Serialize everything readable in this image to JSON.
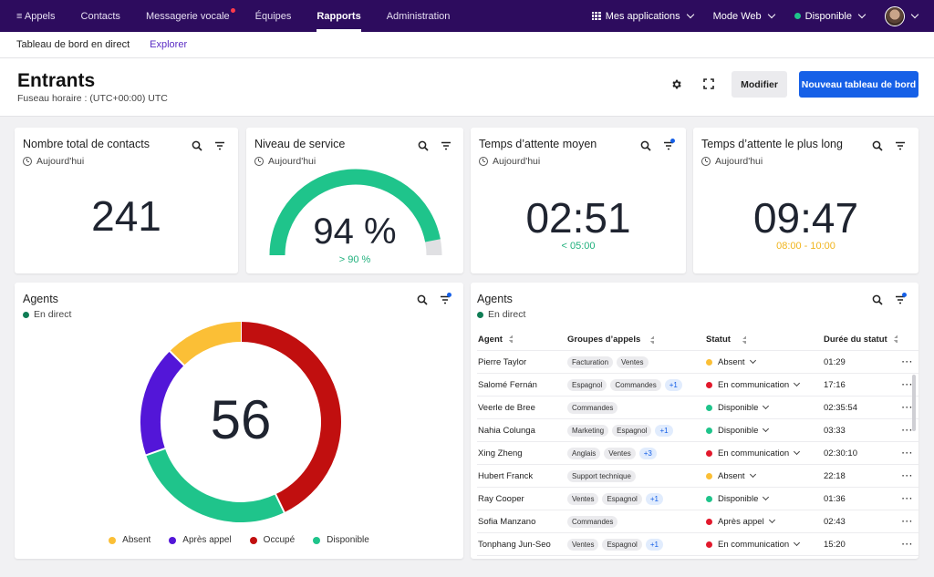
{
  "colors": {
    "nav_bg": "#2d0c5e",
    "accent_blue": "#1660e7",
    "green": "#1fc48b",
    "red": "#c10f0f",
    "yellow": "#fbbf36",
    "purple": "#5316d8"
  },
  "topnav": {
    "items": [
      {
        "label": "≡ Appels"
      },
      {
        "label": "Contacts"
      },
      {
        "label": "Messagerie vocale"
      },
      {
        "label": "Équipes"
      },
      {
        "label": "Rapports"
      },
      {
        "label": "Administration"
      }
    ],
    "active_index": 4,
    "apps_label": "Mes applications",
    "mode_label": "Mode Web",
    "status_label": "Disponible"
  },
  "subnav": {
    "dashboard_label": "Tableau de bord en direct",
    "explorer_label": "Explorer"
  },
  "header": {
    "title": "Entrants",
    "timezone": "Fuseau horaire : (UTC+00:00) UTC",
    "edit_label": "Modifier",
    "new_dashboard_label": "Nouveau tableau de bord"
  },
  "widgets": {
    "total_contacts": {
      "title": "Nombre total de contacts",
      "period": "Aujourd'hui",
      "value": "241"
    },
    "service_level": {
      "title": "Niveau de service",
      "period": "Aujourd'hui",
      "value": "94 %",
      "percent": 94,
      "target": "> 90 %"
    },
    "avg_wait": {
      "title": "Temps d’attente moyen",
      "period": "Aujourd'hui",
      "value": "02:51",
      "target": "< 05:00"
    },
    "longest_wait": {
      "title": "Temps d’attente le plus long",
      "period": "Aujourd'hui",
      "value": "09:47",
      "target": "08:00 - 10:00"
    }
  },
  "agents_donut": {
    "title": "Agents",
    "live_label": "En direct",
    "total": "56",
    "segments": [
      {
        "name": "Absent",
        "value": 7,
        "color": "#fbbf36"
      },
      {
        "name": "Après appel",
        "value": 10,
        "color": "#5316d8"
      },
      {
        "name": "Occupé",
        "value": 24,
        "color": "#c10f0f"
      },
      {
        "name": "Disponible",
        "value": 15,
        "color": "#1fc48b"
      }
    ]
  },
  "agents_table": {
    "title": "Agents",
    "live_label": "En direct",
    "columns": [
      "Agent",
      "Groupes d’appels",
      "Statut",
      "Durée du statut"
    ],
    "rows": [
      {
        "agent": "Pierre Taylor",
        "groups": [
          "Facturation",
          "Ventes"
        ],
        "more": "",
        "status": "Absent",
        "status_color": "#fbbf36",
        "duration": "01:29"
      },
      {
        "agent": "Salomé Fernán",
        "groups": [
          "Espagnol",
          "Commandes"
        ],
        "more": "+1",
        "status": "En communication",
        "status_color": "#e2192c",
        "duration": "17:16"
      },
      {
        "agent": "Veerle de Bree",
        "groups": [
          "Commandes"
        ],
        "more": "",
        "status": "Disponible",
        "status_color": "#1fc48b",
        "duration": "02:35:54"
      },
      {
        "agent": "Nahia Colunga",
        "groups": [
          "Marketing",
          "Espagnol"
        ],
        "more": "+1",
        "status": "Disponible",
        "status_color": "#1fc48b",
        "duration": "03:33"
      },
      {
        "agent": "Xing Zheng",
        "groups": [
          "Anglais",
          "Ventes"
        ],
        "more": "+3",
        "status": "En communication",
        "status_color": "#e2192c",
        "duration": "02:30:10"
      },
      {
        "agent": "Hubert Franck",
        "groups": [
          "Support technique"
        ],
        "more": "",
        "status": "Absent",
        "status_color": "#fbbf36",
        "duration": "22:18"
      },
      {
        "agent": "Ray Cooper",
        "groups": [
          "Ventes",
          "Espagnol"
        ],
        "more": "+1",
        "status": "Disponible",
        "status_color": "#1fc48b",
        "duration": "01:36"
      },
      {
        "agent": "Sofia Manzano",
        "groups": [
          "Commandes"
        ],
        "more": "",
        "status": "Après appel",
        "status_color": "#e2192c",
        "duration": "02:43"
      },
      {
        "agent": "Tonphang Jun-Seo",
        "groups": [
          "Ventes",
          "Espagnol"
        ],
        "more": "+1",
        "status": "En communication",
        "status_color": "#e2192c",
        "duration": "15:20"
      }
    ]
  }
}
